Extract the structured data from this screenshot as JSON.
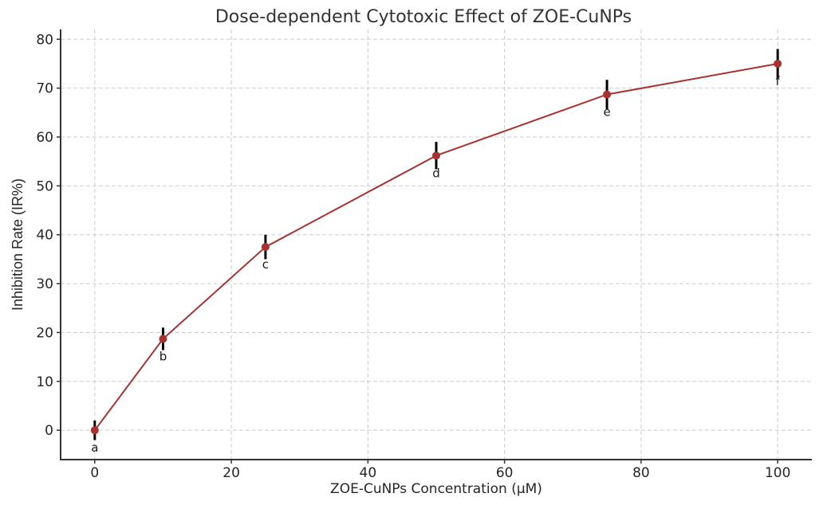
{
  "chart_data": {
    "type": "line",
    "title": "Dose-dependent Cytotoxic Effect of ZOE-CuNPs",
    "xlabel": "ZOE-CuNPs Concentration (µM)",
    "ylabel": "Inhibition Rate (IR%)",
    "xlim": [
      -5,
      105
    ],
    "ylim": [
      -6,
      82
    ],
    "x_ticks": [
      0,
      20,
      40,
      60,
      80,
      100
    ],
    "y_ticks": [
      0,
      10,
      20,
      30,
      40,
      50,
      60,
      70,
      80
    ],
    "grid": true,
    "legend": "none",
    "series": [
      {
        "name": "Inhibition Rate",
        "color": "#a83232",
        "x": [
          0,
          10,
          25,
          50,
          75,
          100
        ],
        "y": [
          0,
          18.7,
          37.5,
          56.2,
          68.7,
          75.0
        ],
        "error": [
          2.0,
          2.3,
          2.5,
          2.8,
          3.0,
          3.0
        ],
        "point_labels": [
          "a",
          "b",
          "c",
          "d",
          "e",
          "f"
        ]
      }
    ]
  }
}
